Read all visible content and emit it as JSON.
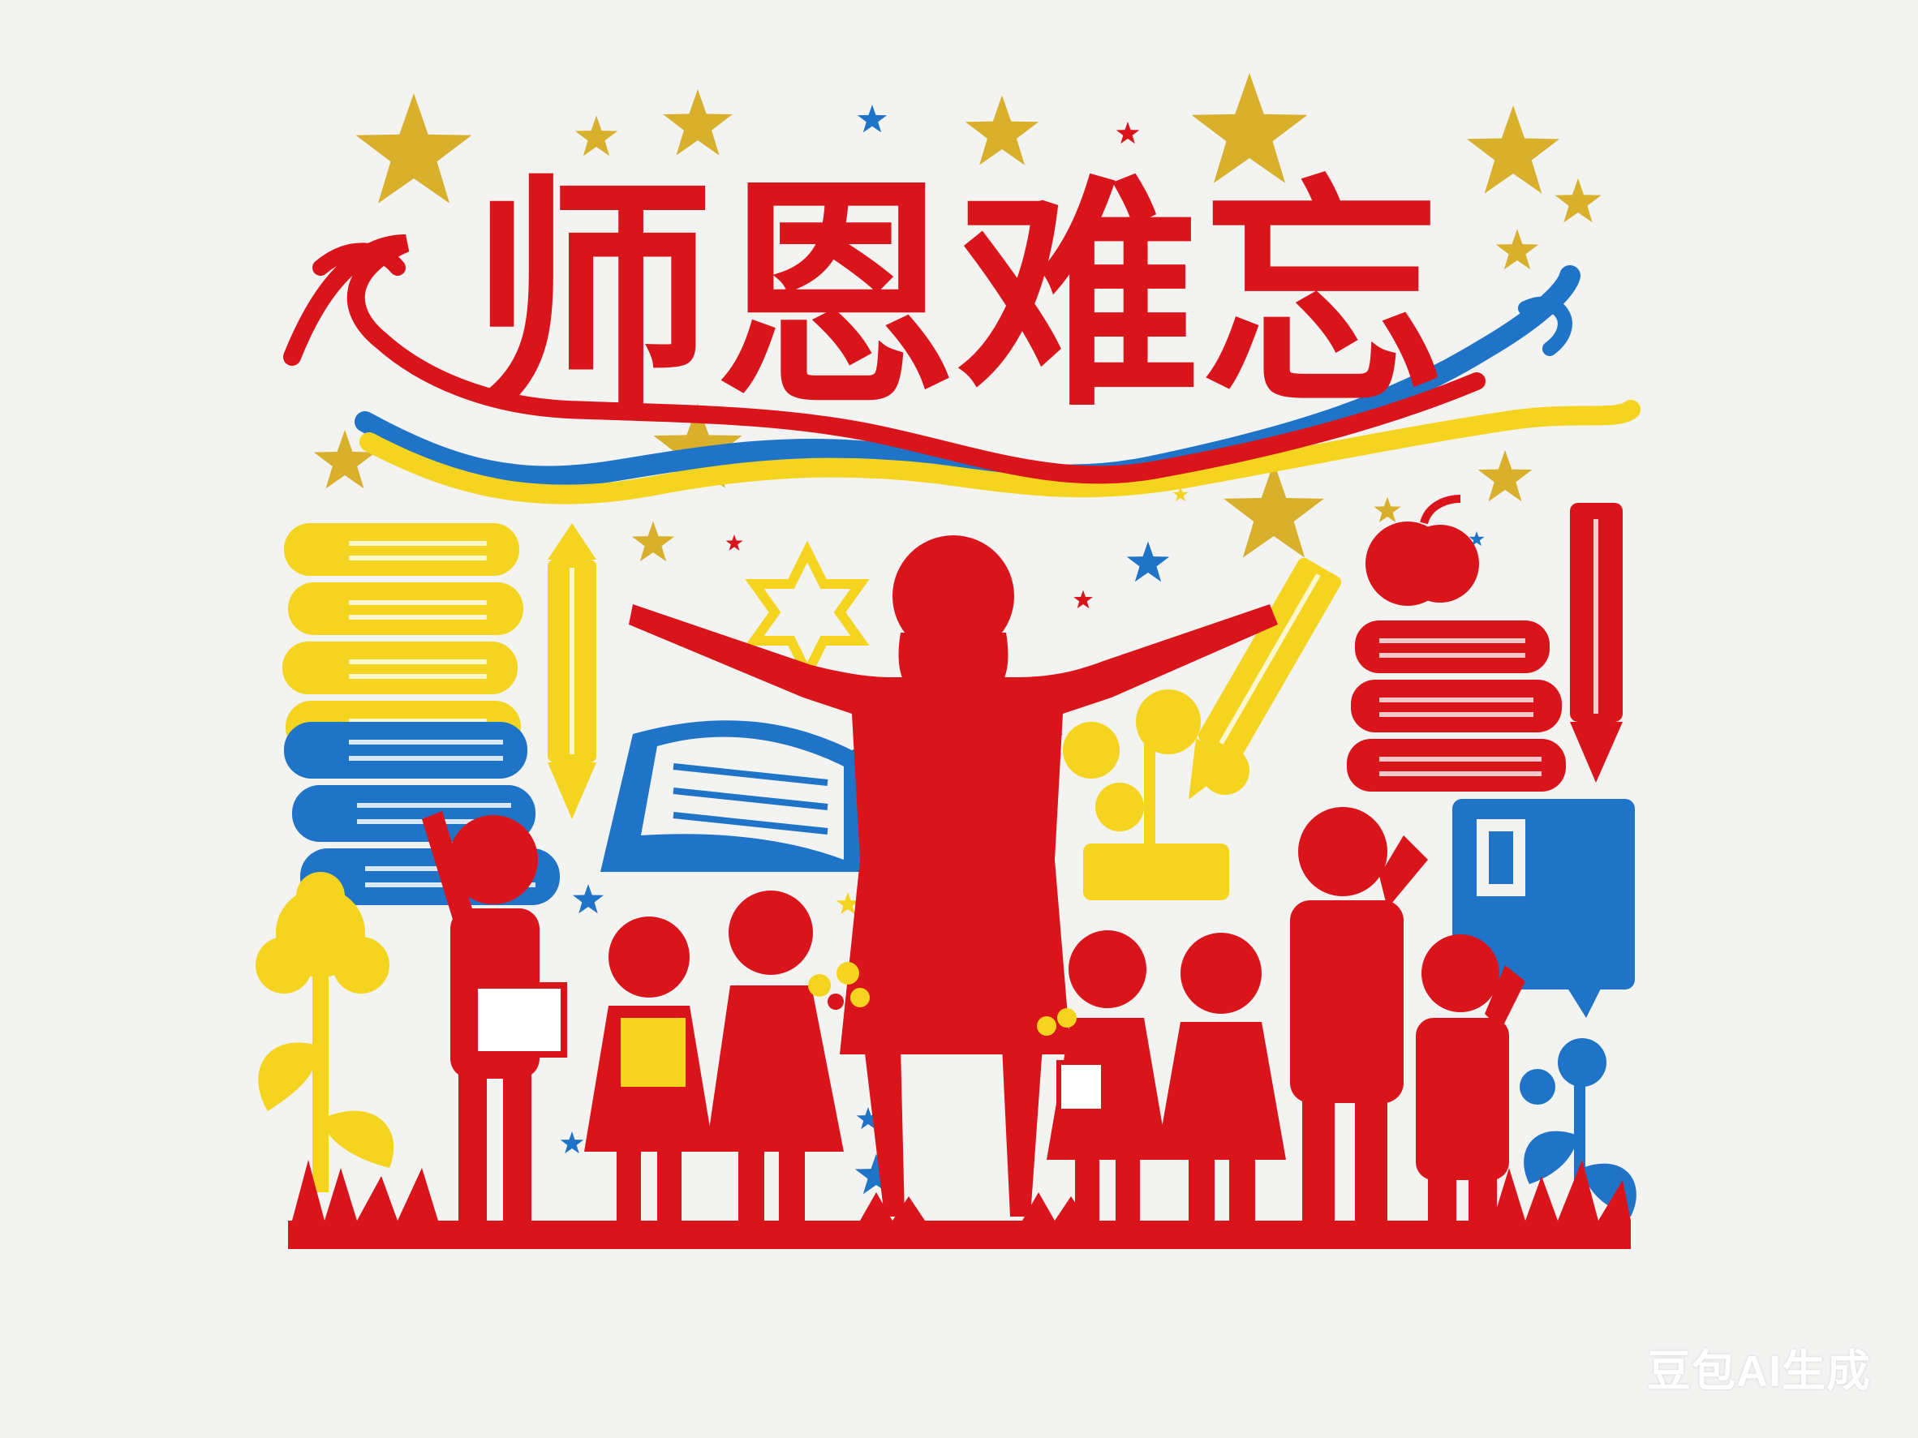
{
  "title": {
    "text": "师恩难忘",
    "color": "#d9141b"
  },
  "watermark": {
    "text": "豆包AI生成"
  },
  "palette": {
    "red": "#d9141b",
    "gold": "#d8b02c",
    "yellow": "#f5d41f",
    "blue": "#1f74c8",
    "background": "#f3f3f2"
  },
  "icons": [
    "star-icon",
    "ribbon-icon",
    "book-stack-icon",
    "pencil-icon",
    "open-book-icon",
    "apple-icon",
    "flower-icon",
    "notebook-icon",
    "teacher-silhouette",
    "student-silhouette"
  ]
}
